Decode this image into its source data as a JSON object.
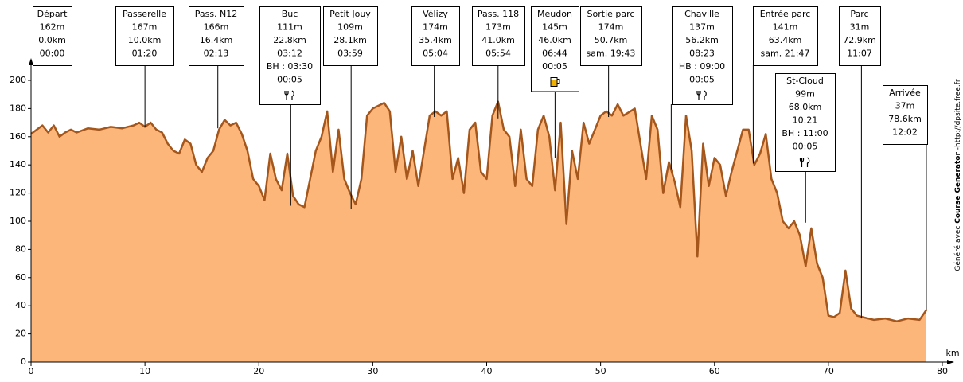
{
  "chart_data": {
    "type": "area",
    "y_label": "m",
    "x_label": "km",
    "credit": [
      "Généré avec ",
      "Course Generator",
      " -http://dpsite.free.fr"
    ],
    "xlim": [
      0,
      80
    ],
    "xticks": [
      0,
      10,
      20,
      30,
      40,
      50,
      60,
      70,
      80
    ],
    "ylim": [
      0,
      200
    ],
    "yticks": [
      0,
      20,
      40,
      60,
      80,
      100,
      120,
      140,
      160,
      180,
      200
    ],
    "fill_color": "#fcb67a",
    "line_color": "#a4561b",
    "x": [
      0,
      0.5,
      1,
      1.5,
      2,
      2.5,
      3,
      3.5,
      4,
      5,
      6,
      7,
      8,
      9,
      9.5,
      10,
      10.5,
      11,
      11.5,
      12,
      12.5,
      13,
      13.5,
      14,
      14.5,
      15,
      15.5,
      16,
      16.5,
      17,
      17.5,
      18,
      18.5,
      19,
      19.5,
      20,
      20.5,
      21,
      21.5,
      22,
      22.5,
      23,
      23.5,
      24,
      24.5,
      25,
      25.5,
      26,
      26.5,
      27,
      27.5,
      28,
      28.5,
      29,
      29.5,
      30,
      31,
      31.5,
      32,
      32.5,
      33,
      33.5,
      34,
      35,
      35.5,
      36,
      36.5,
      37,
      37.5,
      38,
      38.5,
      39,
      39.5,
      40,
      40.5,
      41,
      41.5,
      42,
      42.5,
      43,
      43.5,
      44,
      44.5,
      45,
      45.5,
      46,
      46.5,
      47,
      47.5,
      48,
      48.5,
      49,
      49.5,
      50,
      50.5,
      51,
      51.5,
      52,
      53,
      53.5,
      54,
      54.5,
      55,
      55.5,
      56,
      56.5,
      57,
      57.5,
      58,
      58.5,
      59,
      59.5,
      60,
      60.5,
      61,
      61.5,
      62,
      62.5,
      63,
      63.5,
      64,
      64.5,
      65,
      65.5,
      66,
      66.5,
      67,
      67.5,
      68,
      68.5,
      69,
      69.5,
      70,
      70.5,
      71,
      71.5,
      72,
      72.5,
      73,
      74,
      75,
      76,
      77,
      78,
      78.6
    ],
    "values": [
      162,
      165,
      168,
      163,
      168,
      160,
      163,
      165,
      163,
      166,
      165,
      167,
      166,
      168,
      170,
      167,
      170,
      165,
      163,
      155,
      150,
      148,
      158,
      155,
      140,
      135,
      145,
      150,
      165,
      172,
      168,
      170,
      162,
      150,
      130,
      125,
      115,
      148,
      130,
      122,
      148,
      118,
      112,
      110,
      130,
      150,
      160,
      178,
      135,
      165,
      130,
      120,
      112,
      130,
      175,
      180,
      184,
      178,
      135,
      160,
      130,
      150,
      125,
      175,
      178,
      175,
      178,
      130,
      145,
      120,
      165,
      170,
      135,
      130,
      175,
      185,
      165,
      160,
      125,
      165,
      130,
      125,
      165,
      175,
      160,
      122,
      170,
      98,
      150,
      130,
      170,
      155,
      165,
      175,
      178,
      175,
      183,
      175,
      180,
      155,
      130,
      175,
      165,
      120,
      142,
      128,
      110,
      175,
      150,
      75,
      155,
      125,
      145,
      140,
      118,
      135,
      150,
      165,
      165,
      140,
      148,
      162,
      130,
      120,
      100,
      95,
      100,
      90,
      68,
      95,
      70,
      60,
      33,
      32,
      35,
      65,
      38,
      33,
      32,
      30,
      31,
      29,
      31,
      30,
      37
    ],
    "waypoints": [
      {
        "name": "Départ",
        "altitude": {
          "value": 162,
          "label": "162m"
        },
        "distance": {
          "value": 0.0,
          "label": "0.0km"
        },
        "details": [
          "00:00"
        ]
      },
      {
        "name": "Passerelle",
        "altitude": {
          "value": 167,
          "label": "167m"
        },
        "distance": {
          "value": 10.0,
          "label": "10.0km"
        },
        "details": [
          "01:20"
        ]
      },
      {
        "name": "Pass. N12",
        "altitude": {
          "value": 166,
          "label": "166m"
        },
        "distance": {
          "value": 16.4,
          "label": "16.4km"
        },
        "details": [
          "02:13"
        ]
      },
      {
        "name": "Buc",
        "altitude": {
          "value": 111,
          "label": "111m"
        },
        "distance": {
          "value": 22.8,
          "label": "22.8km"
        },
        "details": [
          "03:12",
          "BH : 03:30",
          "00:05"
        ],
        "icon": "food"
      },
      {
        "name": "Petit Jouy",
        "altitude": {
          "value": 109,
          "label": "109m"
        },
        "distance": {
          "value": 28.1,
          "label": "28.1km"
        },
        "details": [
          "03:59"
        ]
      },
      {
        "name": "Vélizy",
        "altitude": {
          "value": 174,
          "label": "174m"
        },
        "distance": {
          "value": 35.4,
          "label": "35.4km"
        },
        "details": [
          "05:04"
        ]
      },
      {
        "name": "Pass. 118",
        "altitude": {
          "value": 173,
          "label": "173m"
        },
        "distance": {
          "value": 41.0,
          "label": "41.0km"
        },
        "details": [
          "05:54"
        ]
      },
      {
        "name": "Meudon",
        "altitude": {
          "value": 145,
          "label": "145m"
        },
        "distance": {
          "value": 46.0,
          "label": "46.0km"
        },
        "details": [
          "06:44",
          "00:05"
        ],
        "icon": "drink"
      },
      {
        "name": "Sortie parc",
        "altitude": {
          "value": 174,
          "label": "174m"
        },
        "distance": {
          "value": 50.7,
          "label": "50.7km"
        },
        "details": [
          "sam. 19:43"
        ]
      },
      {
        "name": "Chaville",
        "altitude": {
          "value": 137,
          "label": "137m"
        },
        "distance": {
          "value": 56.2,
          "label": "56.2km"
        },
        "details": [
          "08:23",
          "HB : 09:00",
          "00:05"
        ],
        "icon": "food"
      },
      {
        "name": "Entrée parc",
        "altitude": {
          "value": 141,
          "label": "141m"
        },
        "distance": {
          "value": 63.4,
          "label": "63.4km"
        },
        "details": [
          "sam. 21:47"
        ]
      },
      {
        "name": "St-Cloud",
        "altitude": {
          "value": 99,
          "label": "99m"
        },
        "distance": {
          "value": 68.0,
          "label": "68.0km"
        },
        "details": [
          "10:21",
          "BH : 11:00",
          "00:05"
        ],
        "icon": "food"
      },
      {
        "name": "Parc",
        "altitude": {
          "value": 31,
          "label": "31m"
        },
        "distance": {
          "value": 72.9,
          "label": "72.9km"
        },
        "details": [
          "11:07"
        ]
      },
      {
        "name": "Arrivée",
        "altitude": {
          "value": 37,
          "label": "37m"
        },
        "distance": {
          "value": 78.6,
          "label": "78.6km"
        },
        "details": [
          "12:02"
        ]
      }
    ]
  }
}
